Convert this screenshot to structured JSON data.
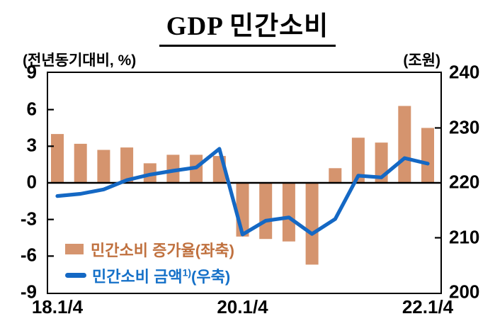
{
  "title": "GDP 민간소비",
  "axes": {
    "left": {
      "unit": "(전년동기대비, %)",
      "ticks": [
        "9",
        "6",
        "3",
        "0",
        "-3",
        "-6",
        "-9"
      ]
    },
    "right": {
      "unit": "(조원)",
      "ticks": [
        "240",
        "230",
        "220",
        "210",
        "200"
      ]
    },
    "x": {
      "tick_labels": [
        "18.1/4",
        "20.1/4",
        "22.1/4"
      ],
      "tick_slots": [
        0,
        8,
        16
      ]
    }
  },
  "legend": [
    {
      "label": "민간소비 증가율(좌축)",
      "sup": "",
      "label_post": "",
      "color": "#C0713F",
      "swatch": "bar-swatch"
    },
    {
      "label": "민간소비 금액",
      "sup": "1)",
      "label_post": "(우축)",
      "color": "#1470C8",
      "swatch": "line-swatch"
    }
  ],
  "colors": {
    "bar": "#D5946E",
    "line": "#1468C4",
    "axis": "#000000"
  },
  "chart_data": {
    "type": "bar+line",
    "categories": [
      "18.1/4",
      "18.2/4",
      "18.3/4",
      "18.4/4",
      "19.1/4",
      "19.2/4",
      "19.3/4",
      "19.4/4",
      "20.1/4",
      "20.2/4",
      "20.3/4",
      "20.4/4",
      "21.1/4",
      "21.2/4",
      "21.3/4",
      "21.4/4",
      "22.1/4"
    ],
    "series": [
      {
        "name": "민간소비 증가율(좌축)",
        "type": "bar",
        "axis": "left",
        "unit": "%",
        "values": [
          4.0,
          3.2,
          2.7,
          2.9,
          1.6,
          2.3,
          2.3,
          2.2,
          -4.4,
          -4.6,
          -4.8,
          -6.7,
          1.2,
          3.7,
          3.3,
          6.3,
          4.5
        ]
      },
      {
        "name": "민간소비 금액(우축)",
        "type": "line",
        "axis": "right",
        "unit": "조원",
        "values": [
          217.6,
          218.0,
          218.8,
          220.5,
          221.5,
          222.2,
          222.8,
          226.2,
          210.6,
          213.1,
          213.7,
          210.7,
          213.4,
          221.3,
          221.0,
          224.5,
          223.5
        ]
      }
    ],
    "left_ylim": [
      -9,
      9
    ],
    "right_ylim": [
      200,
      240
    ],
    "left_tick_step": 3,
    "right_tick_step": 10,
    "grid": false,
    "legend_position": "inside-bottom-left"
  }
}
